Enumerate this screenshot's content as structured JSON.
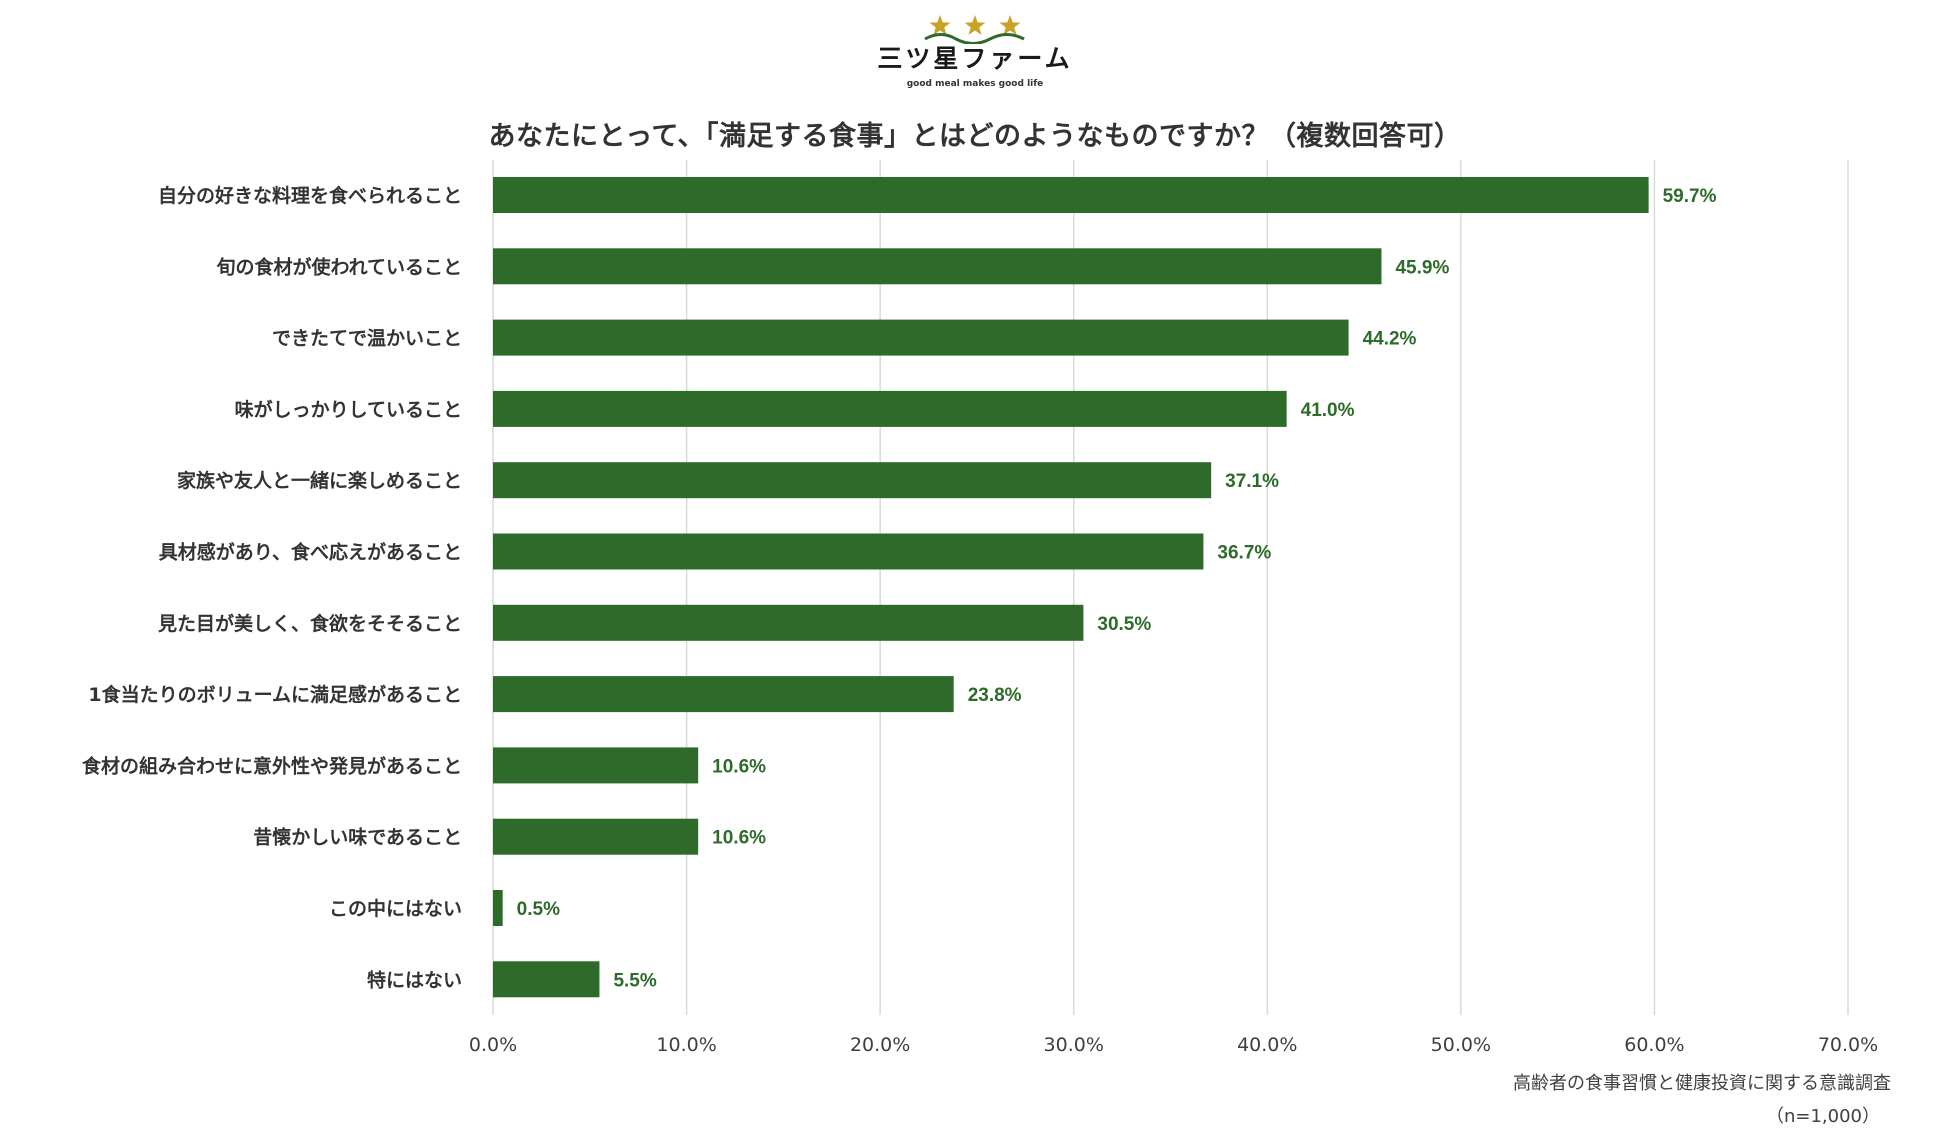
{
  "logo": {
    "name": "三ツ星ファーム",
    "tagline": "good meal makes good life",
    "star_color": "#c9a227",
    "wave_color": "#2e6b2a"
  },
  "colors": {
    "bar": "#2e6b2a",
    "value_label": "#2e6b2a",
    "grid": "#d9d9d9"
  },
  "footer": {
    "source": "高齢者の食事習慣と健康投資に関する意識調査",
    "sample": "（n=1,000）"
  },
  "chart_data": {
    "type": "bar",
    "orientation": "horizontal",
    "title": "あなたにとって、「満足する食事」とはどのようなものですか？（複数回答可）",
    "categories": [
      "自分の好きな料理を食べられること",
      "旬の食材が使われていること",
      "できたてで温かいこと",
      "味がしっかりしていること",
      "家族や友人と一緒に楽しめること",
      "具材感があり、食べ応えがあること",
      "見た目が美しく、食欲をそそること",
      "1食当たりのボリュームに満足感があること",
      "食材の組み合わせに意外性や発見があること",
      "昔懐かしい味であること",
      "この中にはない",
      "特にはない"
    ],
    "values": [
      59.7,
      45.9,
      44.2,
      41.0,
      37.1,
      36.7,
      30.5,
      23.8,
      10.6,
      10.6,
      0.5,
      5.5
    ],
    "value_labels": [
      "59.7%",
      "45.9%",
      "44.2%",
      "41.0%",
      "37.1%",
      "36.7%",
      "30.5%",
      "23.8%",
      "10.6%",
      "10.6%",
      "0.5%",
      "5.5%"
    ],
    "xlim": [
      0,
      70
    ],
    "xticks": [
      0,
      10,
      20,
      30,
      40,
      50,
      60,
      70
    ],
    "xtick_labels": [
      "0.0%",
      "10.0%",
      "20.0%",
      "30.0%",
      "40.0%",
      "50.0%",
      "60.0%",
      "70.0%"
    ],
    "grid": true,
    "legend": "none"
  }
}
